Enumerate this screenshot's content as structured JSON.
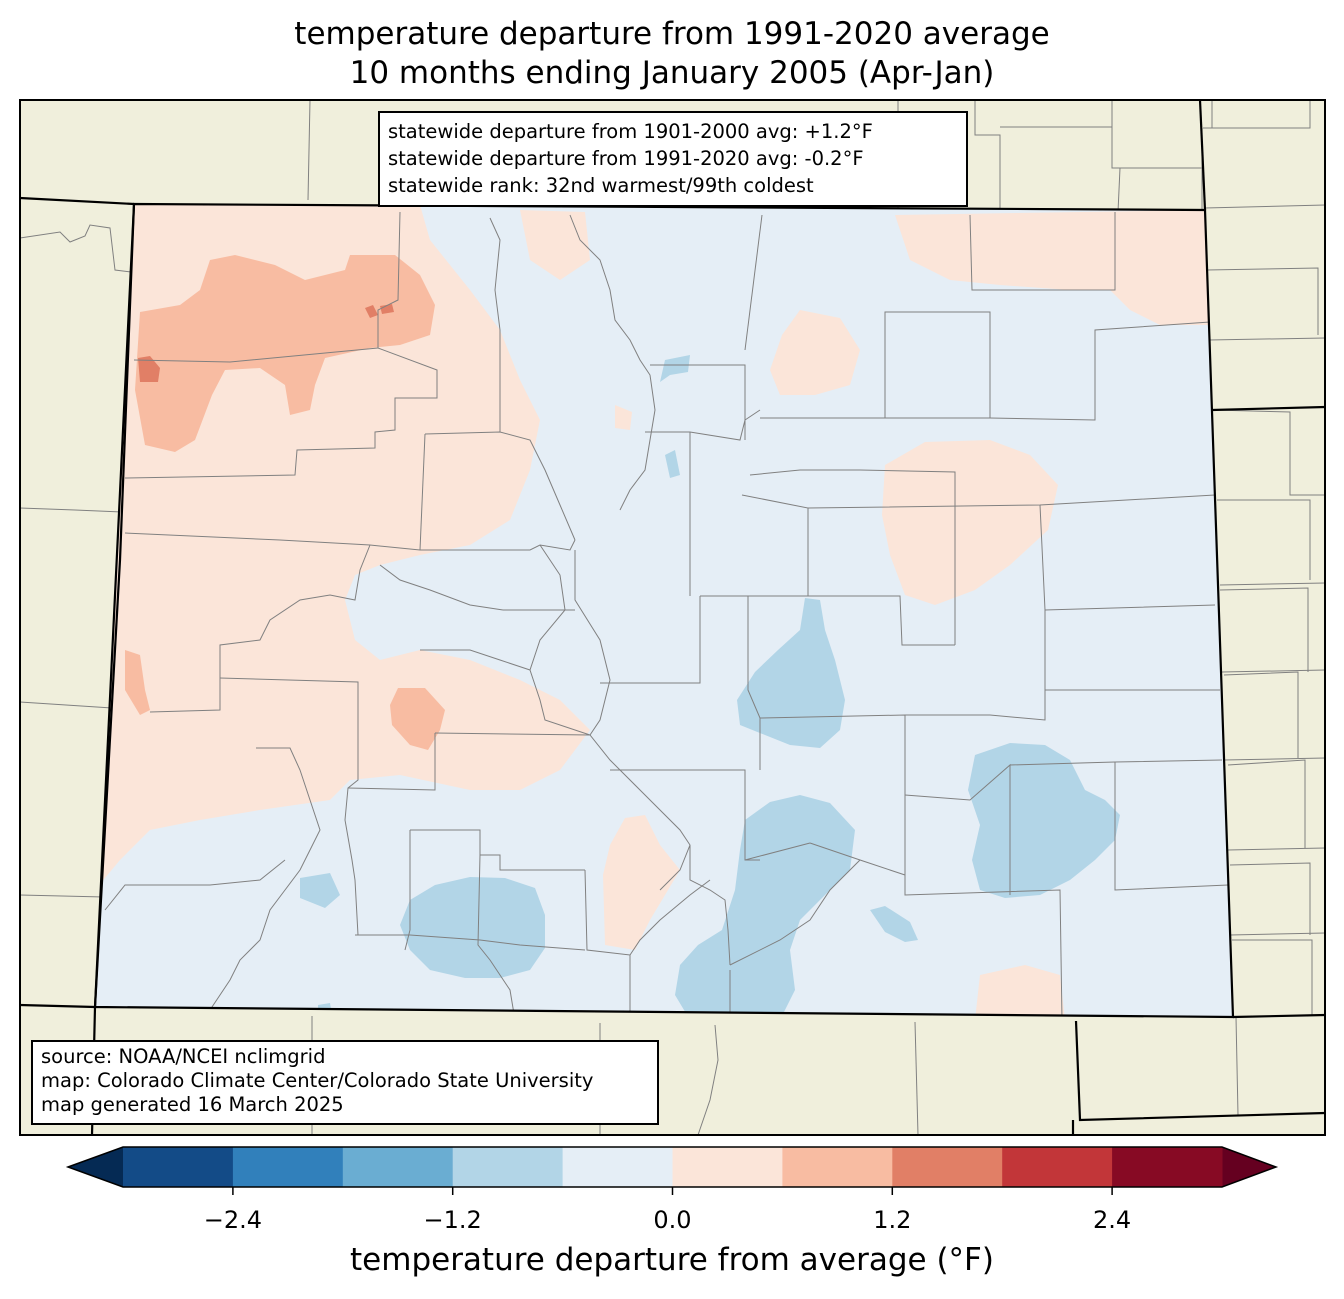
{
  "title": {
    "line1": "temperature departure from 1991-2020 average",
    "line2": "10 months ending January 2005 (Apr-Jan)"
  },
  "stats": {
    "line1": "statewide departure from 1901-2000 avg: +1.2°F",
    "line2": "statewide departure from 1991-2020 avg: -0.2°F",
    "line3": "statewide rank: 32nd warmest/99th coldest"
  },
  "source": {
    "line1": "source: NOAA/NCEI nclimgrid",
    "line2": "map: Colorado Climate Center/Colorado State University",
    "line3": "map generated 16 March 2025"
  },
  "colorbar": {
    "label": "temperature departure from average (°F)",
    "bins": [
      -3.0,
      -2.4,
      -1.8,
      -1.2,
      -0.6,
      0.0,
      0.6,
      1.2,
      1.8,
      2.4,
      3.0
    ],
    "colors": [
      "#134b87",
      "#3180bb",
      "#6aadd2",
      "#b2d5e7",
      "#e5eef6",
      "#fbe5d9",
      "#f8bca2",
      "#e17f66",
      "#c23639",
      "#870a24"
    ],
    "under_color": "#052a54",
    "over_color": "#650020",
    "ticks": [
      "−2.4",
      "−1.2",
      "0.0",
      "1.2",
      "2.4"
    ],
    "tick_values": [
      -2.4,
      -1.2,
      0.0,
      1.2,
      2.4
    ]
  },
  "map_colors": {
    "background": "#f0efdc",
    "state_border": "#000000",
    "county_border": "#808080"
  }
}
